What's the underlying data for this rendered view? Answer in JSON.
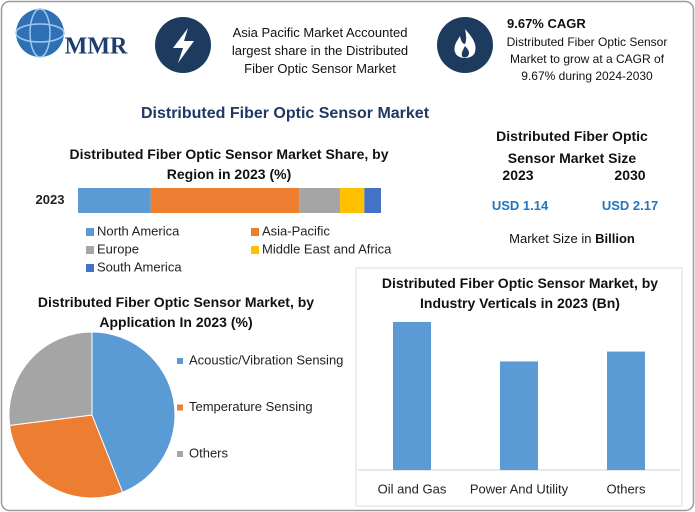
{
  "header": {
    "logo": "MMR",
    "callouts": [
      {
        "text": "Asia Pacific Market Accounted largest share in the Distributed Fiber Optic Sensor Market"
      },
      {
        "title": "9.67% CAGR",
        "text": "Distributed Fiber Optic Sensor Market to grow at a CAGR of 9.67% during 2024-2030"
      }
    ]
  },
  "title": "Distributed Fiber Optic Sensor Market",
  "market_size": {
    "title": "Distributed Fiber Optic Sensor Market Size",
    "years": [
      "2023",
      "2030"
    ],
    "values": [
      "USD 1.14",
      "USD 2.17"
    ],
    "note": "Market Size in",
    "unit": "Billion"
  },
  "chart_data": [
    {
      "type": "stacked_bar",
      "title": "Distributed Fiber Optic Sensor Market Share, by Region in 2023 (%)",
      "categories": [
        "2023"
      ],
      "legend": "bottom",
      "series": [
        {
          "name": "North America",
          "color": "#5b9bd5",
          "values": [
            24
          ]
        },
        {
          "name": "Asia-Pacific",
          "color": "#ed7d31",
          "values": [
            49
          ]
        },
        {
          "name": "Europe",
          "color": "#a5a5a5",
          "values": [
            13.5
          ]
        },
        {
          "name": "Middle East and Africa",
          "color": "#ffc000",
          "values": [
            8
          ]
        },
        {
          "name": "South America",
          "color": "#4472c4",
          "values": [
            5.5
          ]
        }
      ]
    },
    {
      "type": "pie",
      "title": "Distributed Fiber Optic Sensor Market, by Application In 2023 (%)",
      "categories": [
        "Acoustic/Vibration Sensing",
        "Temperature Sensing",
        "Others"
      ],
      "values": [
        44,
        29,
        27
      ],
      "colors": [
        "#5b9bd5",
        "#ed7d31",
        "#a5a5a5"
      ],
      "legend": "right"
    },
    {
      "type": "bar",
      "title": "Distributed Fiber Optic Sensor Market, by Industry Verticals in 2023 (Bn)",
      "categories": [
        "Oil and Gas",
        "Power And Utility",
        "Others"
      ],
      "values": [
        0.45,
        0.33,
        0.36
      ],
      "color": "#5b9bd5"
    }
  ]
}
